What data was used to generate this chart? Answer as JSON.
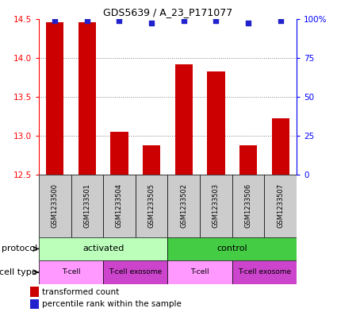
{
  "title": "GDS5639 / A_23_P171077",
  "samples": [
    "GSM1233500",
    "GSM1233501",
    "GSM1233504",
    "GSM1233505",
    "GSM1233502",
    "GSM1233503",
    "GSM1233506",
    "GSM1233507"
  ],
  "bar_values": [
    14.45,
    14.45,
    13.05,
    12.88,
    13.92,
    13.82,
    12.88,
    13.22
  ],
  "dot_values": [
    99,
    99,
    99,
    97,
    99,
    99,
    97,
    99
  ],
  "y_min": 12.5,
  "y_max": 14.5,
  "y_ticks": [
    12.5,
    13.0,
    13.5,
    14.0,
    14.5
  ],
  "y2_ticks": [
    0,
    25,
    50,
    75,
    100
  ],
  "bar_color": "#cc0000",
  "dot_color": "#2222cc",
  "bar_width": 0.55,
  "protocol_activated_color": "#bbffbb",
  "protocol_control_color": "#44cc44",
  "cell_type_tcell_color": "#ff99ff",
  "cell_type_exosome_color": "#cc44cc",
  "sample_box_color": "#cccccc",
  "protocol_label": "protocol",
  "cell_type_label": "cell type",
  "activated_label": "activated",
  "control_label": "control",
  "tcell_label": "T-cell",
  "exosome_label": "T-cell exosome",
  "legend_bar_label": "transformed count",
  "legend_dot_label": "percentile rank within the sample"
}
